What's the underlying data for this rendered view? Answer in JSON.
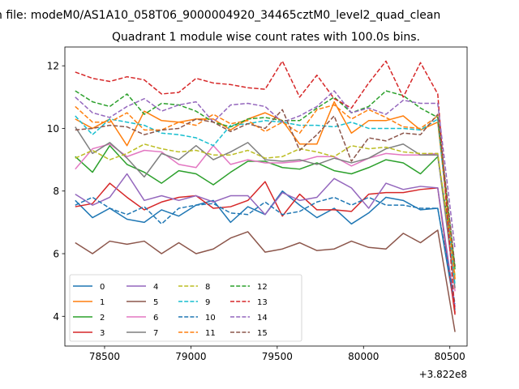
{
  "chart_data": {
    "type": "line",
    "suptitle": "n file: modeM0/AS1A10_058T06_9000004920_34465cztM0_level2_quad_clean",
    "title": "Quadrant 1 module wise count rates with 100.0s bins.",
    "xlabel": "",
    "ylabel": "",
    "x_offset_label": "+3.822e8",
    "xlim": [
      78270,
      80600
    ],
    "ylim": [
      3.05,
      12.6
    ],
    "x_ticks": [
      78500,
      79000,
      79500,
      80000,
      80500
    ],
    "y_ticks": [
      4,
      6,
      8,
      10,
      12
    ],
    "x": [
      78330,
      78430,
      78530,
      78630,
      78730,
      78830,
      78930,
      79030,
      79130,
      79230,
      79330,
      79430,
      79530,
      79630,
      79730,
      79830,
      79930,
      80030,
      80130,
      80230,
      80330,
      80430,
      80530
    ],
    "series": [
      {
        "name": "0",
        "color": "#1f77b4",
        "dash": "solid",
        "values": [
          7.7,
          7.15,
          7.45,
          7.1,
          7.0,
          7.4,
          7.2,
          7.55,
          7.7,
          7.0,
          7.5,
          7.25,
          8.0,
          7.55,
          7.15,
          7.45,
          6.95,
          7.3,
          7.8,
          7.7,
          7.4,
          7.45,
          4.2
        ]
      },
      {
        "name": "1",
        "color": "#ff7f0e",
        "dash": "solid",
        "values": [
          10.3,
          10.0,
          10.3,
          9.45,
          10.55,
          10.25,
          10.2,
          10.3,
          10.3,
          9.95,
          10.3,
          10.5,
          10.25,
          9.5,
          9.5,
          10.85,
          9.85,
          10.25,
          10.25,
          10.4,
          9.95,
          10.2,
          5.2
        ]
      },
      {
        "name": "2",
        "color": "#2ca02c",
        "dash": "solid",
        "values": [
          9.1,
          8.6,
          9.45,
          8.85,
          8.6,
          8.25,
          8.65,
          8.55,
          8.2,
          8.6,
          8.95,
          8.95,
          8.75,
          8.7,
          8.9,
          8.65,
          8.55,
          8.75,
          9.0,
          8.9,
          8.55,
          9.1,
          5.5
        ]
      },
      {
        "name": "3",
        "color": "#d62728",
        "dash": "solid",
        "values": [
          7.5,
          7.6,
          8.25,
          7.8,
          7.4,
          7.65,
          7.8,
          7.85,
          7.45,
          7.5,
          7.7,
          8.3,
          7.2,
          7.9,
          7.4,
          7.4,
          7.35,
          7.9,
          7.95,
          7.95,
          8.05,
          8.1,
          4.05
        ]
      },
      {
        "name": "4",
        "color": "#9467bd",
        "dash": "solid",
        "values": [
          7.9,
          7.55,
          7.8,
          8.55,
          7.7,
          7.85,
          7.7,
          7.85,
          7.65,
          7.85,
          7.85,
          7.25,
          7.95,
          7.7,
          7.8,
          8.4,
          8.1,
          7.45,
          8.25,
          8.05,
          8.15,
          8.1,
          4.3
        ]
      },
      {
        "name": "5",
        "color": "#8c564b",
        "dash": "solid",
        "values": [
          6.35,
          6.0,
          6.4,
          6.3,
          6.4,
          6.0,
          6.35,
          6.0,
          6.15,
          6.5,
          6.7,
          6.05,
          6.15,
          6.35,
          6.1,
          6.15,
          6.4,
          6.2,
          6.15,
          6.65,
          6.35,
          6.75,
          3.5
        ]
      },
      {
        "name": "6",
        "color": "#e377c2",
        "dash": "solid",
        "values": [
          8.7,
          9.35,
          9.5,
          9.1,
          9.3,
          9.25,
          8.85,
          8.75,
          9.45,
          8.85,
          9.0,
          8.9,
          8.9,
          8.95,
          9.1,
          9.1,
          8.8,
          9.05,
          9.2,
          9.15,
          9.15,
          9.2,
          4.8
        ]
      },
      {
        "name": "7",
        "color": "#7f7f7f",
        "dash": "solid",
        "values": [
          10.05,
          9.2,
          9.55,
          9.05,
          8.45,
          9.2,
          9.0,
          9.45,
          9.0,
          9.25,
          9.55,
          9.0,
          8.95,
          9.0,
          8.85,
          9.05,
          8.9,
          9.05,
          9.35,
          9.5,
          9.15,
          9.15,
          4.9
        ]
      },
      {
        "name": "8",
        "color": "#bcbd22",
        "dash": "dashed",
        "values": [
          9.05,
          9.3,
          9.0,
          9.2,
          9.5,
          9.35,
          9.25,
          9.3,
          9.15,
          9.15,
          9.3,
          9.05,
          9.1,
          9.35,
          9.25,
          9.1,
          9.45,
          9.35,
          9.4,
          9.25,
          9.2,
          9.2,
          5.3
        ]
      },
      {
        "name": "9",
        "color": "#17becf",
        "dash": "dashed",
        "values": [
          10.4,
          9.8,
          10.3,
          10.2,
          10.1,
          9.85,
          9.8,
          9.7,
          9.45,
          10.1,
          10.15,
          10.25,
          10.2,
          10.1,
          10.1,
          10.05,
          10.2,
          10.0,
          10.0,
          10.0,
          9.95,
          10.3,
          5.0
        ]
      },
      {
        "name": "10",
        "color": "#1f77b4",
        "dash": "dashed",
        "values": [
          7.55,
          7.8,
          7.45,
          7.25,
          7.5,
          6.95,
          7.45,
          7.55,
          7.6,
          7.3,
          7.25,
          7.65,
          7.25,
          7.35,
          7.65,
          7.8,
          7.55,
          7.8,
          7.55,
          7.55,
          7.45,
          7.45,
          4.4
        ]
      },
      {
        "name": "11",
        "color": "#ff7f0e",
        "dash": "dashed",
        "values": [
          10.7,
          10.2,
          10.2,
          10.5,
          9.95,
          9.95,
          10.2,
          10.1,
          10.45,
          10.15,
          10.25,
          9.9,
          10.2,
          9.85,
          10.6,
          10.75,
          10.3,
          10.6,
          10.35,
          10.05,
          10.0,
          10.4,
          5.15
        ]
      },
      {
        "name": "12",
        "color": "#2ca02c",
        "dash": "dashed",
        "values": [
          11.2,
          10.85,
          10.7,
          11.1,
          10.45,
          10.8,
          10.75,
          10.55,
          10.2,
          10.05,
          10.3,
          10.35,
          10.25,
          10.25,
          10.65,
          11.0,
          10.5,
          10.7,
          11.2,
          11.05,
          10.65,
          10.35,
          5.55
        ]
      },
      {
        "name": "13",
        "color": "#d62728",
        "dash": "dashed",
        "values": [
          11.8,
          11.6,
          11.5,
          11.65,
          11.55,
          11.1,
          11.15,
          11.6,
          11.45,
          11.4,
          11.3,
          11.25,
          12.15,
          11.0,
          11.7,
          10.95,
          10.65,
          11.45,
          12.15,
          11.0,
          12.1,
          11.1,
          4.1
        ]
      },
      {
        "name": "14",
        "color": "#9467bd",
        "dash": "dashed",
        "values": [
          11.0,
          10.5,
          10.35,
          10.7,
          10.95,
          10.55,
          10.75,
          10.85,
          10.2,
          10.75,
          10.8,
          10.7,
          10.2,
          10.4,
          10.7,
          11.2,
          10.5,
          10.65,
          10.45,
          10.9,
          10.8,
          10.8,
          6.15
        ]
      },
      {
        "name": "15",
        "color": "#8c564b",
        "dash": "dashed",
        "values": [
          9.95,
          10.0,
          10.1,
          10.05,
          9.8,
          9.95,
          10.0,
          10.3,
          10.2,
          9.9,
          10.15,
          10.0,
          10.6,
          9.3,
          9.8,
          10.4,
          8.95,
          9.7,
          9.6,
          9.85,
          9.8,
          10.45,
          5.6
        ]
      }
    ],
    "legend": {
      "position": "lower-left",
      "columns": 4
    }
  }
}
